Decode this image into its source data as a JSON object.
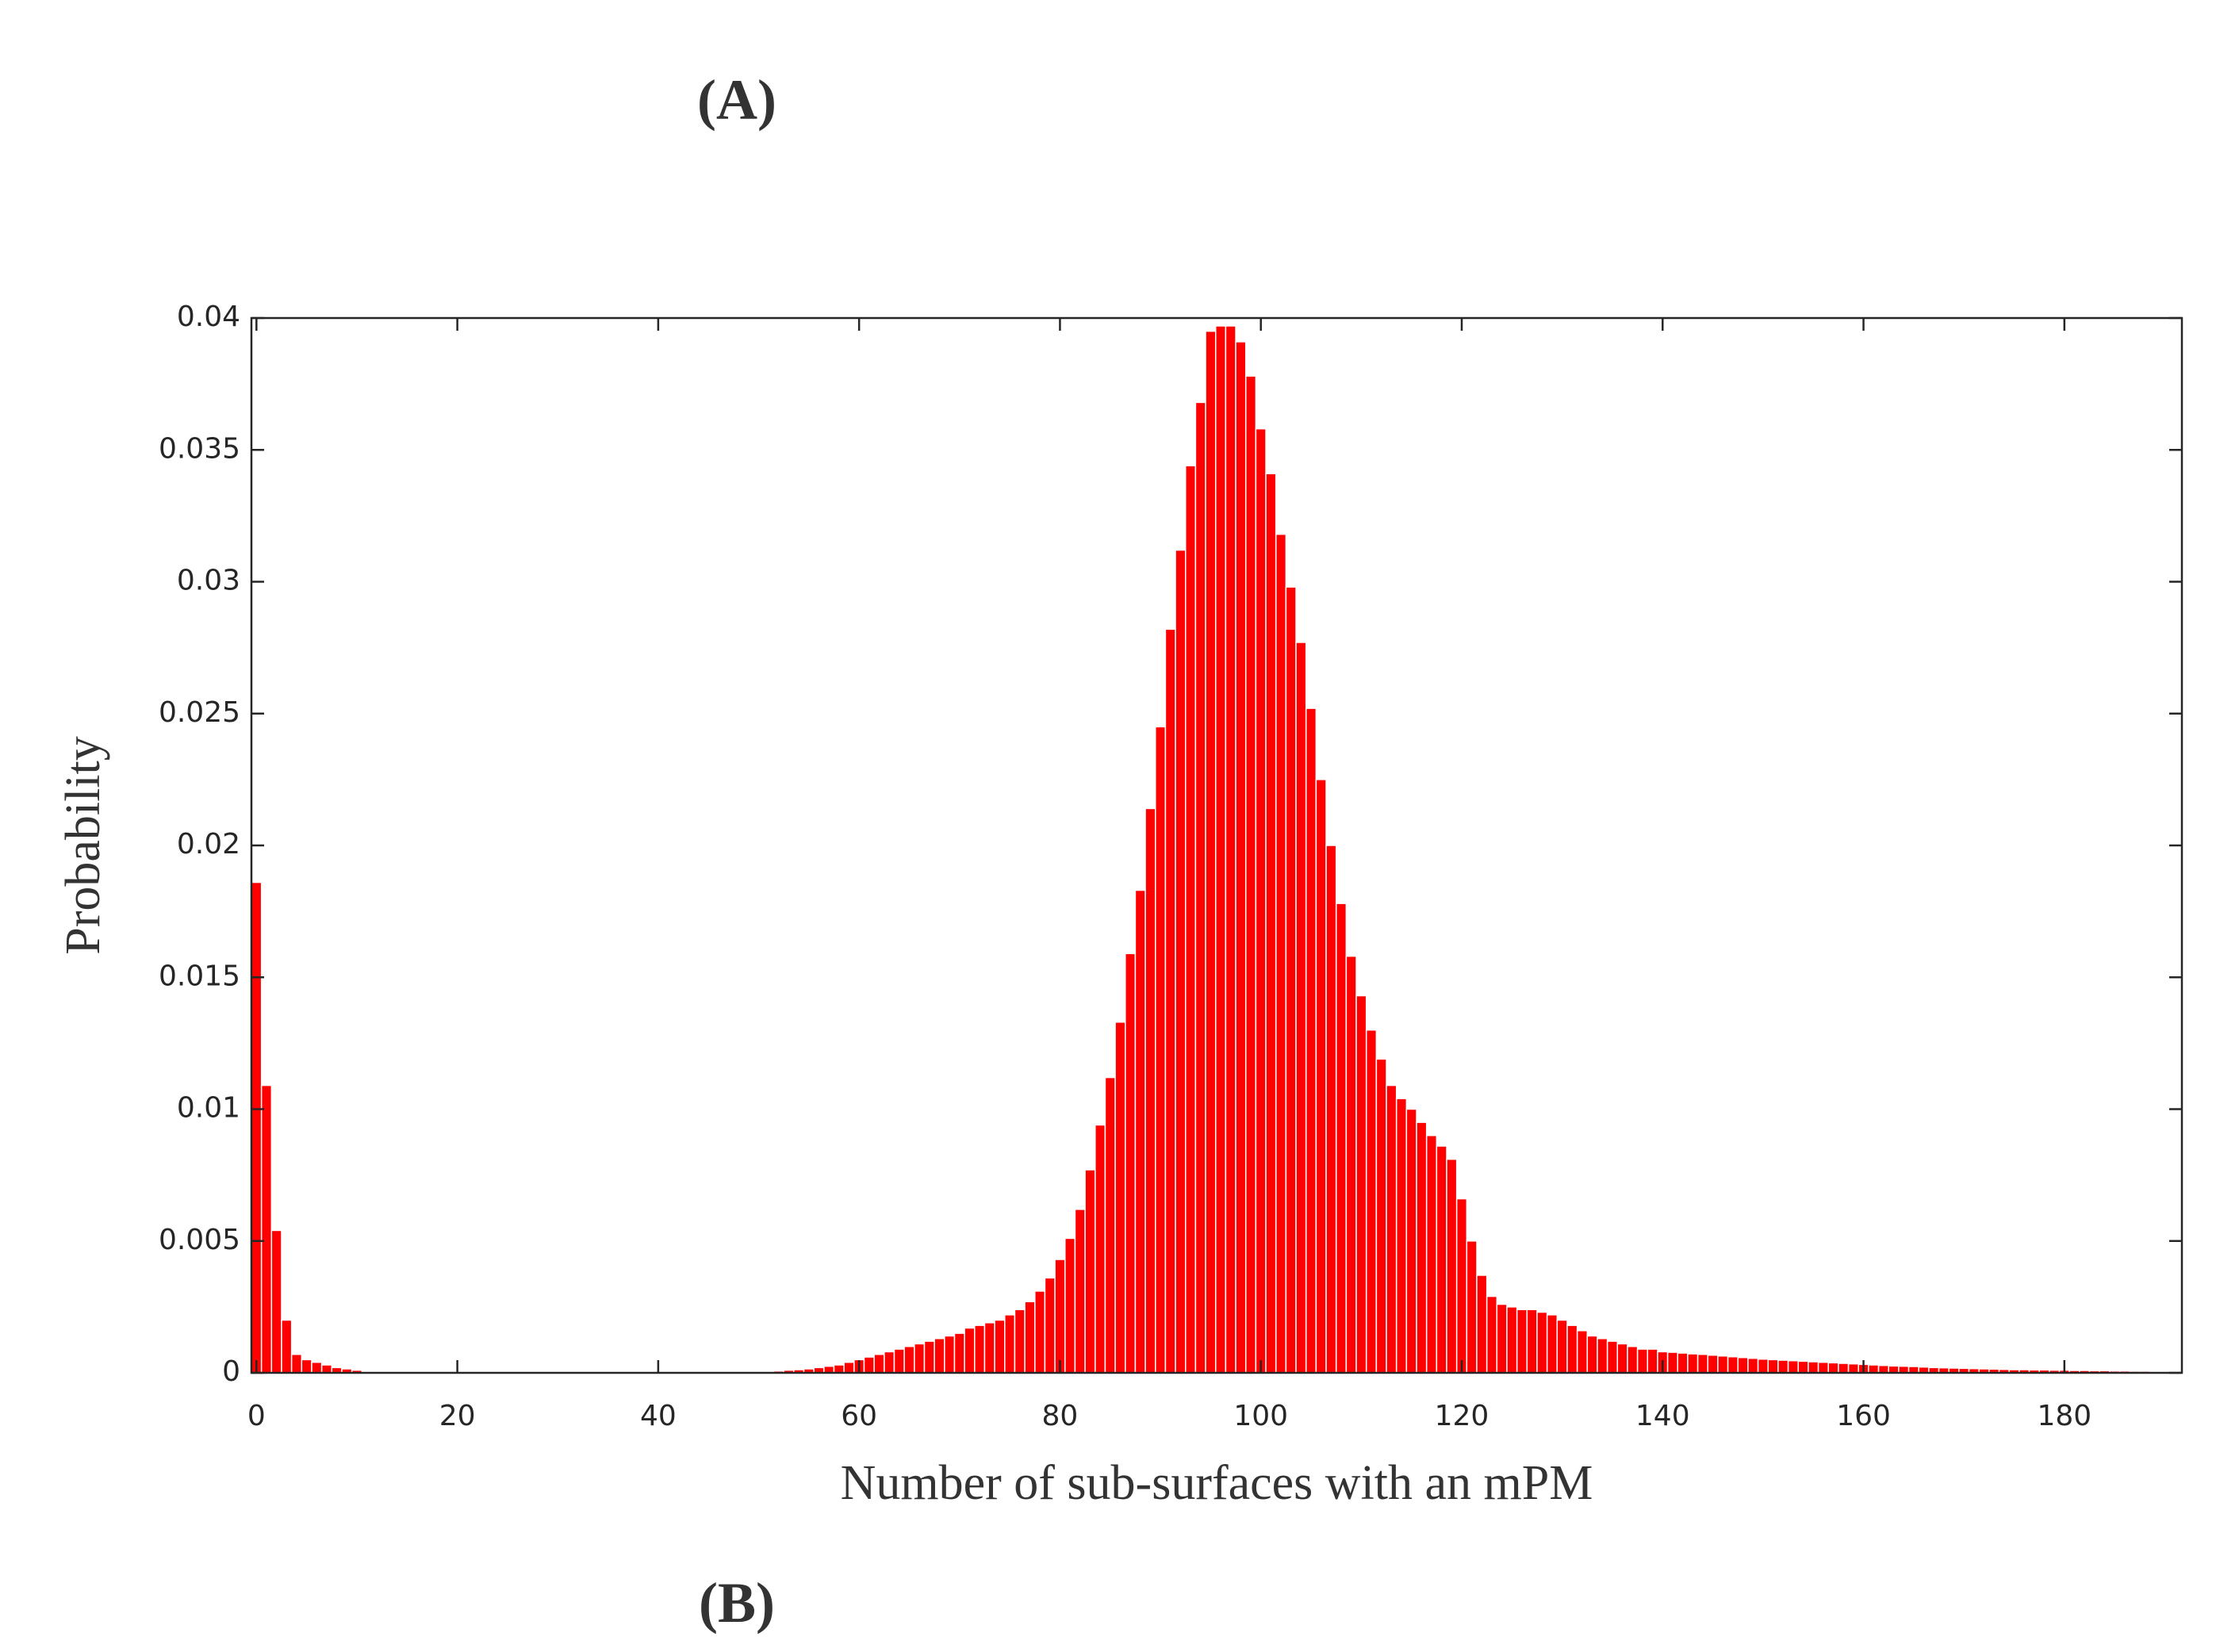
{
  "chart_data": {
    "type": "bar",
    "annotations": [
      "(A)",
      "(B)"
    ],
    "xlabel": "Number of sub-surfaces with an mPM",
    "ylabel": "Probability",
    "color": "#ff0000",
    "edgecolor": "#ffffff",
    "x": [
      0,
      1,
      2,
      3,
      4,
      5,
      6,
      7,
      8,
      9,
      10,
      11,
      12,
      13,
      14,
      15,
      16,
      17,
      18,
      19,
      20,
      21,
      22,
      23,
      24,
      25,
      26,
      27,
      28,
      29,
      30,
      31,
      32,
      33,
      34,
      35,
      36,
      37,
      38,
      39,
      40,
      41,
      42,
      43,
      44,
      45,
      46,
      47,
      48,
      49,
      50,
      51,
      52,
      53,
      54,
      55,
      56,
      57,
      58,
      59,
      60,
      61,
      62,
      63,
      64,
      65,
      66,
      67,
      68,
      69,
      70,
      71,
      72,
      73,
      74,
      75,
      76,
      77,
      78,
      79,
      80,
      81,
      82,
      83,
      84,
      85,
      86,
      87,
      88,
      89,
      90,
      91,
      92,
      93,
      94,
      95,
      96,
      97,
      98,
      99,
      100,
      101,
      102,
      103,
      104,
      105,
      106,
      107,
      108,
      109,
      110,
      111,
      112,
      113,
      114,
      115,
      116,
      117,
      118,
      119,
      120,
      121,
      122,
      123,
      124,
      125,
      126,
      127,
      128,
      129,
      130,
      131,
      132,
      133,
      134,
      135,
      136,
      137,
      138,
      139,
      140,
      141,
      142,
      143,
      144,
      145,
      146,
      147,
      148,
      149,
      150,
      151,
      152,
      153,
      154,
      155,
      156,
      157,
      158,
      159,
      160,
      161,
      162,
      163,
      164,
      165,
      166,
      167,
      168,
      169,
      170,
      171,
      172,
      173,
      174,
      175,
      176,
      177,
      178,
      179,
      180,
      181,
      182,
      183,
      184,
      185,
      186,
      187,
      188,
      189,
      190
    ],
    "values": [
      0.0186,
      0.0109,
      0.0054,
      0.002,
      0.0007,
      0.0005,
      0.0004,
      0.0003,
      0.0002,
      0.00015,
      0.0001,
      5e-05,
      0,
      0,
      0,
      0,
      0,
      0,
      0,
      0,
      0,
      0,
      0,
      0,
      0,
      0,
      0,
      0,
      0,
      0,
      0,
      0,
      0,
      0,
      0,
      0,
      0,
      0,
      0,
      0,
      0,
      0,
      0,
      0,
      0,
      0,
      0,
      0,
      0,
      0,
      5e-05,
      5e-05,
      7e-05,
      0.0001,
      0.00012,
      0.00015,
      0.0002,
      0.00025,
      0.0003,
      0.0004,
      0.0005,
      0.0006,
      0.0007,
      0.0008,
      0.0009,
      0.001,
      0.0011,
      0.0012,
      0.0013,
      0.0014,
      0.0015,
      0.0017,
      0.0018,
      0.0019,
      0.002,
      0.0022,
      0.0024,
      0.0027,
      0.0031,
      0.0036,
      0.0043,
      0.0051,
      0.0062,
      0.0077,
      0.0094,
      0.0112,
      0.0133,
      0.0159,
      0.0183,
      0.0214,
      0.0245,
      0.0282,
      0.0312,
      0.0344,
      0.0368,
      0.0395,
      0.0397,
      0.0397,
      0.0391,
      0.0378,
      0.0358,
      0.0341,
      0.0318,
      0.0298,
      0.0277,
      0.0252,
      0.0225,
      0.02,
      0.0178,
      0.0158,
      0.0143,
      0.013,
      0.0119,
      0.0109,
      0.0104,
      0.01,
      0.0095,
      0.009,
      0.0086,
      0.0081,
      0.0066,
      0.005,
      0.0037,
      0.0029,
      0.0026,
      0.0025,
      0.0024,
      0.0024,
      0.0023,
      0.0022,
      0.002,
      0.0018,
      0.0016,
      0.0014,
      0.0013,
      0.0012,
      0.0011,
      0.001,
      0.0009,
      0.0009,
      0.0008,
      0.00078,
      0.00075,
      0.00072,
      0.0007,
      0.00067,
      0.00064,
      0.00061,
      0.00058,
      0.00055,
      0.00052,
      0.0005,
      0.00048,
      0.00046,
      0.00044,
      0.00042,
      0.0004,
      0.00038,
      0.00036,
      0.00034,
      0.00032,
      0.0003,
      0.00028,
      0.00026,
      0.00025,
      0.00024,
      0.00022,
      0.0002,
      0.00019,
      0.00018,
      0.00017,
      0.00016,
      0.00015,
      0.00014,
      0.00013,
      0.00012,
      0.00012,
      0.00011,
      0.00011,
      0.0001,
      0.0001,
      9e-05,
      9e-05,
      8e-05,
      8e-05,
      7e-05,
      7e-05,
      6e-05,
      6e-05,
      5e-05,
      5e-05
    ],
    "xlim": [
      -0.5,
      191.7
    ],
    "ylim": [
      0,
      0.04
    ],
    "xticks": [
      0,
      20,
      40,
      60,
      80,
      100,
      120,
      140,
      160,
      180
    ],
    "yticks": [
      0,
      0.005,
      0.01,
      0.015,
      0.02,
      0.025,
      0.03,
      0.035,
      0.04
    ],
    "grid": false
  }
}
